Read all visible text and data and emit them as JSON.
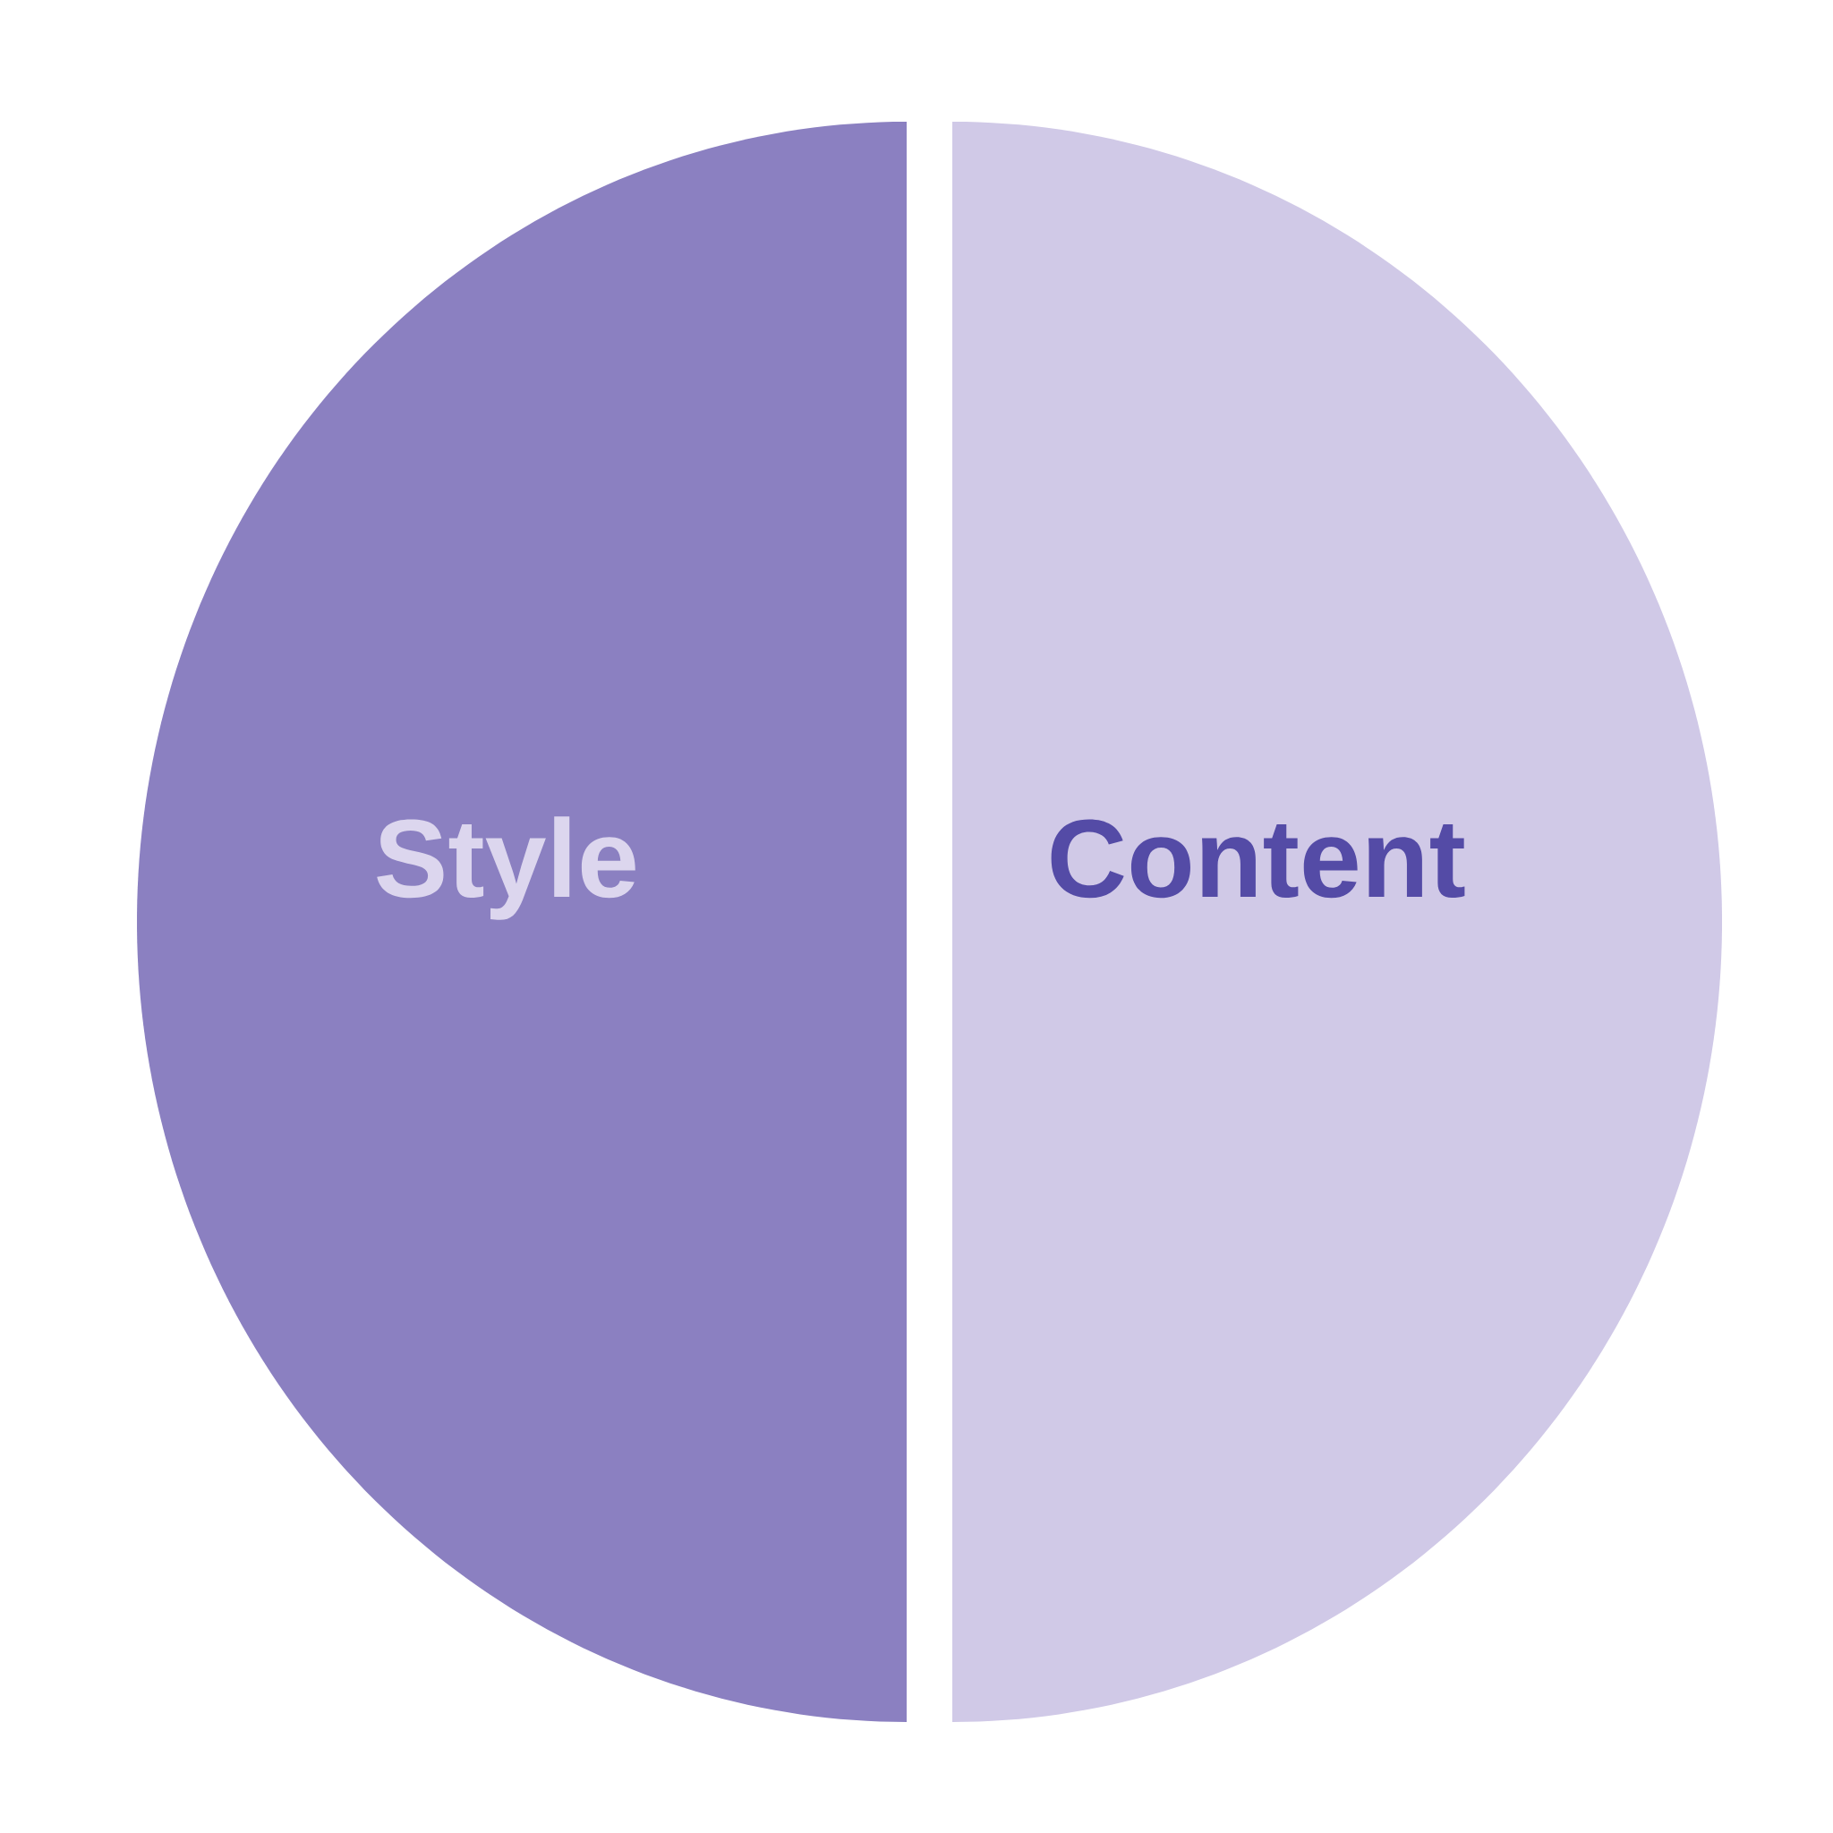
{
  "chart_data": {
    "type": "pie",
    "categories": [
      "Style",
      "Content"
    ],
    "values": [
      50,
      50
    ],
    "colors": [
      "#8b80c1",
      "#d0c9e7"
    ]
  }
}
